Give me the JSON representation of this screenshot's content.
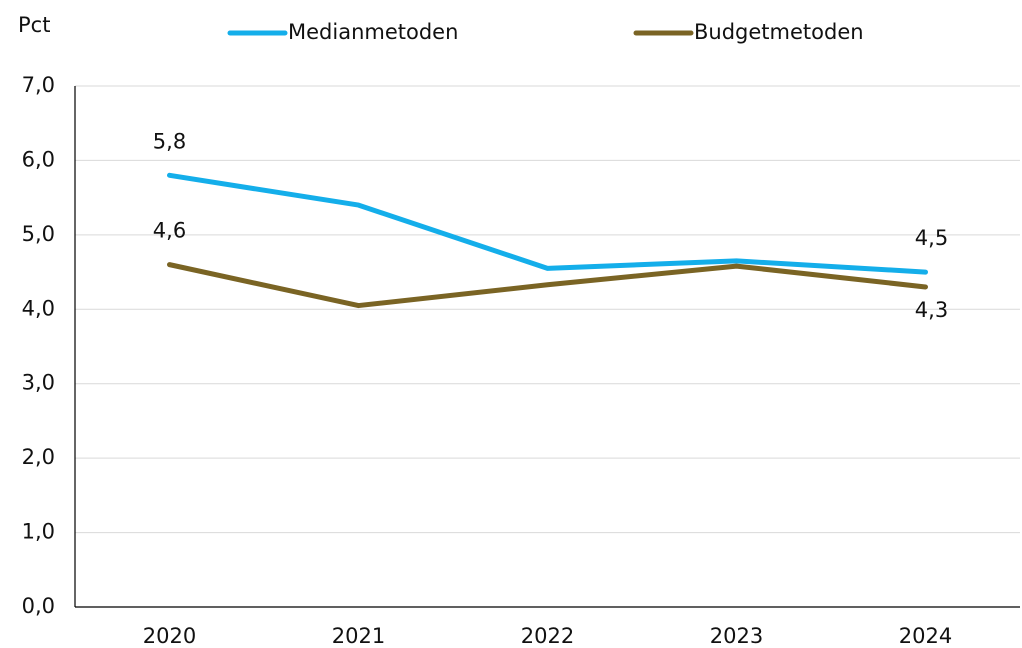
{
  "chart_data": {
    "type": "line",
    "y_axis_label": "Pct",
    "categories": [
      "2020",
      "2021",
      "2022",
      "2023",
      "2024"
    ],
    "series": [
      {
        "name": "Medianmetoden",
        "color": "#14aeea",
        "values": [
          5.8,
          5.4,
          4.55,
          4.65,
          4.5
        ],
        "value_labels": [
          "5,8",
          null,
          null,
          null,
          "4,5"
        ]
      },
      {
        "name": "Budgetmetoden",
        "color": "#7a6424",
        "values": [
          4.6,
          4.05,
          4.33,
          4.58,
          4.3
        ],
        "value_labels": [
          "4,6",
          null,
          null,
          null,
          "4,3"
        ]
      }
    ],
    "ylim": [
      0,
      7
    ],
    "yticks": [
      {
        "value": 0,
        "label": "0,0"
      },
      {
        "value": 1,
        "label": "1,0"
      },
      {
        "value": 2,
        "label": "2,0"
      },
      {
        "value": 3,
        "label": "3,0"
      },
      {
        "value": 4,
        "label": "4,0"
      },
      {
        "value": 5,
        "label": "5,0"
      },
      {
        "value": 6,
        "label": "6,0"
      },
      {
        "value": 7,
        "label": "7,0"
      }
    ],
    "grid": true
  }
}
